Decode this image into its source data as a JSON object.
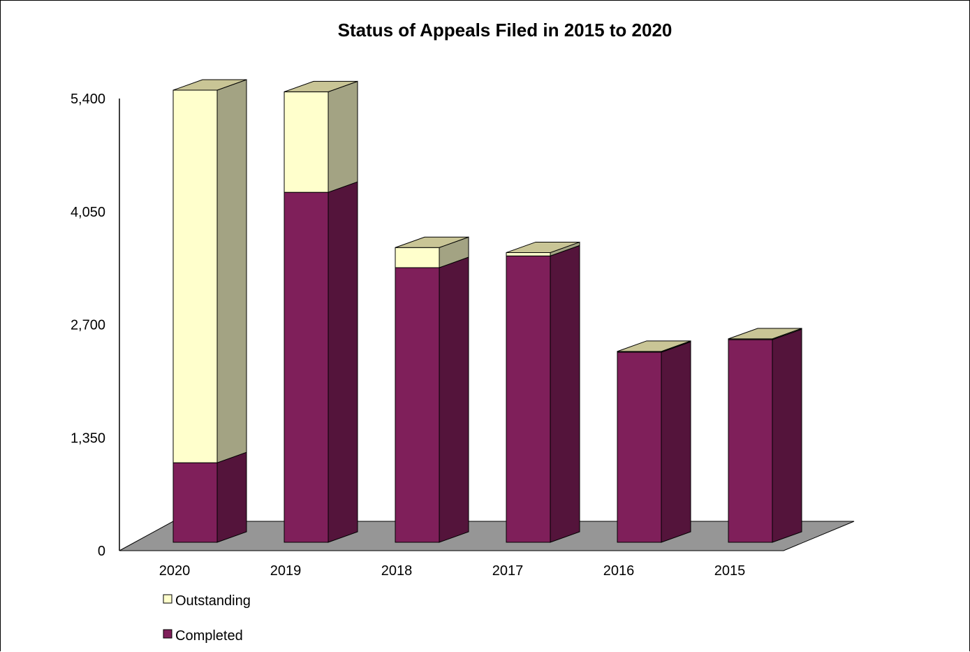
{
  "chart_data": {
    "type": "bar",
    "stacked": true,
    "three_d": true,
    "title": "Status of Appeals Filed in 2015 to 2020",
    "xlabel": "",
    "ylabel": "",
    "categories": [
      "2020",
      "2019",
      "2018",
      "2017",
      "2016",
      "2015"
    ],
    "ylim": [
      0,
      5400
    ],
    "yticks": [
      0,
      1350,
      2700,
      4050,
      5400
    ],
    "ytick_labels": [
      "0",
      "1,350",
      "2,700",
      "4,050",
      "5,400"
    ],
    "grid": false,
    "legend_position": "bottom-left",
    "series": [
      {
        "name": "Completed",
        "values": [
          950,
          4180,
          3280,
          3420,
          2270,
          2420
        ],
        "color": "#7f1f5a"
      },
      {
        "name": "Outstanding",
        "values": [
          4450,
          1200,
          240,
          40,
          10,
          10
        ],
        "color": "#ffffcc"
      }
    ],
    "legend_order": [
      "Outstanding",
      "Completed"
    ],
    "floor_color": "#969696"
  }
}
